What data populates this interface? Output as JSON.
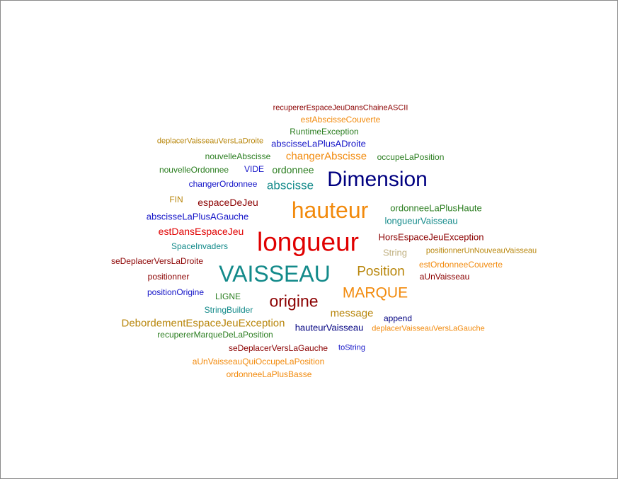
{
  "words": [
    {
      "text": "recupererEspaceJeuDansChaineASCII",
      "color": "#8b0000"
    },
    {
      "text": "estAbscisseCouverte",
      "color": "#f28a0c"
    },
    {
      "text": "RuntimeException",
      "color": "#2a7d1f"
    },
    {
      "text": "deplacerVaisseauVersLaDroite",
      "color": "#b8860b"
    },
    {
      "text": "abscisseLaPlusADroite",
      "color": "#1414c8"
    },
    {
      "text": "nouvelleAbscisse",
      "color": "#2a7d1f"
    },
    {
      "text": "changerAbscisse",
      "color": "#f28a0c"
    },
    {
      "text": "occupeLaPosition",
      "color": "#2a7d1f"
    },
    {
      "text": "nouvelleOrdonnee",
      "color": "#2a7d1f"
    },
    {
      "text": "VIDE",
      "color": "#1414c8"
    },
    {
      "text": "ordonnee",
      "color": "#2a7d1f"
    },
    {
      "text": "Dimension",
      "color": "#000080"
    },
    {
      "text": "changerOrdonnee",
      "color": "#1414c8"
    },
    {
      "text": "abscisse",
      "color": "#138a8a"
    },
    {
      "text": "FIN",
      "color": "#b8860b"
    },
    {
      "text": "espaceDeJeu",
      "color": "#8b0000"
    },
    {
      "text": "hauteur",
      "color": "#f28a0c"
    },
    {
      "text": "ordonneeLaPlusHaute",
      "color": "#2a7d1f"
    },
    {
      "text": "abscisseLaPlusAGauche",
      "color": "#1414c8"
    },
    {
      "text": "longueurVaisseau",
      "color": "#138a8a"
    },
    {
      "text": "estDansEspaceJeu",
      "color": "#e00000"
    },
    {
      "text": "longueur",
      "color": "#e00000"
    },
    {
      "text": "HorsEspaceJeuException",
      "color": "#8b0000"
    },
    {
      "text": "SpaceInvaders",
      "color": "#138a8a"
    },
    {
      "text": "String",
      "color": "#c0b080"
    },
    {
      "text": "positionnerUnNouveauVaisseau",
      "color": "#b8860b"
    },
    {
      "text": "seDeplacerVersLaDroite",
      "color": "#8b0000"
    },
    {
      "text": "estOrdonneeCouverte",
      "color": "#f28a0c"
    },
    {
      "text": "VAISSEAU",
      "color": "#138a8a"
    },
    {
      "text": "Position",
      "color": "#b8860b"
    },
    {
      "text": "positionner",
      "color": "#8b0000"
    },
    {
      "text": "aUnVaisseau",
      "color": "#8b0000"
    },
    {
      "text": "positionOrigine",
      "color": "#1414c8"
    },
    {
      "text": "MARQUE",
      "color": "#f28a0c"
    },
    {
      "text": "LIGNE",
      "color": "#2a7d1f"
    },
    {
      "text": "origine",
      "color": "#8b0000"
    },
    {
      "text": "StringBuilder",
      "color": "#138a8a"
    },
    {
      "text": "message",
      "color": "#b8860b"
    },
    {
      "text": "append",
      "color": "#000080"
    },
    {
      "text": "DebordementEspaceJeuException",
      "color": "#b8860b"
    },
    {
      "text": "hauteurVaisseau",
      "color": "#000080"
    },
    {
      "text": "deplacerVaisseauVersLaGauche",
      "color": "#f28a0c"
    },
    {
      "text": "recupererMarqueDeLaPosition",
      "color": "#2a7d1f"
    },
    {
      "text": "seDeplacerVersLaGauche",
      "color": "#8b0000"
    },
    {
      "text": "toString",
      "color": "#1414c8"
    },
    {
      "text": "aUnVaisseauQuiOccupeLaPosition",
      "color": "#f28a0c"
    },
    {
      "text": "ordonneeLaPlusBasse",
      "color": "#f28a0c"
    }
  ]
}
